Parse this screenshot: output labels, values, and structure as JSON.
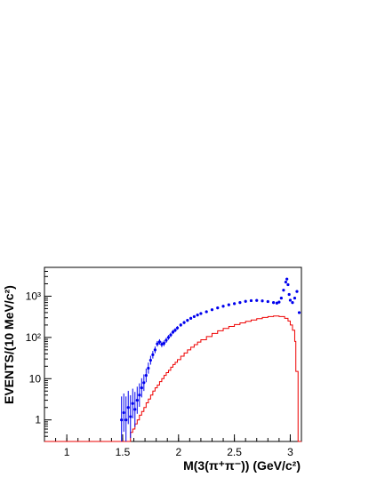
{
  "chart_data": {
    "type": "scatter",
    "title": "",
    "xlabel": "M(3(π⁺π⁻))   (GeV/c²)",
    "ylabel": "EVENTS/(10 MeV/c²)",
    "xlim": [
      0.8,
      3.1
    ],
    "ylim": [
      0.3,
      5000
    ],
    "y_scale": "log",
    "grid": false,
    "x_ticks": [
      {
        "value": 1,
        "label": "1"
      },
      {
        "value": 1.5,
        "label": "1.5"
      },
      {
        "value": 2,
        "label": "2"
      },
      {
        "value": 2.5,
        "label": "2.5"
      },
      {
        "value": 3,
        "label": "3"
      }
    ],
    "y_ticks": [
      {
        "value": 1,
        "label": "1"
      },
      {
        "value": 10,
        "label": "10"
      },
      {
        "value": 100,
        "label": "10²"
      },
      {
        "value": 1000,
        "label": "10³"
      }
    ],
    "series": [
      {
        "style": "points-with-error-bars",
        "color": "#0000ee",
        "points": [
          [
            1.49,
            1.0
          ],
          [
            1.51,
            1.5
          ],
          [
            1.53,
            1.0
          ],
          [
            1.55,
            2.0
          ],
          [
            1.57,
            1.2
          ],
          [
            1.59,
            2.5
          ],
          [
            1.61,
            1.8
          ],
          [
            1.63,
            3.0
          ],
          [
            1.65,
            4.0
          ],
          [
            1.67,
            6.0
          ],
          [
            1.69,
            8.0
          ],
          [
            1.71,
            12
          ],
          [
            1.73,
            18
          ],
          [
            1.75,
            28
          ],
          [
            1.77,
            38
          ],
          [
            1.79,
            50
          ],
          [
            1.81,
            70
          ],
          [
            1.83,
            78
          ],
          [
            1.85,
            68
          ],
          [
            1.87,
            72
          ],
          [
            1.89,
            85
          ],
          [
            1.91,
            100
          ],
          [
            1.93,
            115
          ],
          [
            1.95,
            135
          ],
          [
            1.97,
            150
          ],
          [
            1.99,
            170
          ],
          [
            2.02,
            200
          ],
          [
            2.05,
            230
          ],
          [
            2.08,
            260
          ],
          [
            2.11,
            290
          ],
          [
            2.14,
            320
          ],
          [
            2.17,
            350
          ],
          [
            2.2,
            380
          ],
          [
            2.25,
            420
          ],
          [
            2.3,
            470
          ],
          [
            2.35,
            520
          ],
          [
            2.4,
            570
          ],
          [
            2.45,
            620
          ],
          [
            2.5,
            660
          ],
          [
            2.55,
            700
          ],
          [
            2.6,
            750
          ],
          [
            2.65,
            780
          ],
          [
            2.7,
            790
          ],
          [
            2.75,
            770
          ],
          [
            2.8,
            740
          ],
          [
            2.85,
            700
          ],
          [
            2.88,
            680
          ],
          [
            2.9,
            720
          ],
          [
            2.92,
            900
          ],
          [
            2.94,
            1400
          ],
          [
            2.96,
            2200
          ],
          [
            2.97,
            2600
          ],
          [
            2.98,
            1900
          ],
          [
            2.99,
            1100
          ],
          [
            3.0,
            800
          ],
          [
            3.02,
            700
          ],
          [
            3.04,
            900
          ],
          [
            3.06,
            1300
          ],
          [
            3.08,
            400
          ]
        ]
      },
      {
        "style": "step-histogram",
        "color": "#ee0000",
        "points": [
          [
            0.8,
            0.3
          ],
          [
            1.55,
            0.3
          ],
          [
            1.57,
            0.5
          ],
          [
            1.59,
            0.6
          ],
          [
            1.61,
            0.8
          ],
          [
            1.63,
            1.0
          ],
          [
            1.65,
            1.3
          ],
          [
            1.67,
            1.6
          ],
          [
            1.69,
            2.0
          ],
          [
            1.71,
            2.6
          ],
          [
            1.73,
            3.2
          ],
          [
            1.75,
            4.0
          ],
          [
            1.77,
            5.0
          ],
          [
            1.79,
            6.0
          ],
          [
            1.81,
            7.0
          ],
          [
            1.83,
            8.5
          ],
          [
            1.85,
            10
          ],
          [
            1.87,
            12
          ],
          [
            1.89,
            14
          ],
          [
            1.91,
            16
          ],
          [
            1.93,
            19
          ],
          [
            1.95,
            22
          ],
          [
            1.97,
            25
          ],
          [
            1.99,
            29
          ],
          [
            2.02,
            35
          ],
          [
            2.05,
            42
          ],
          [
            2.08,
            50
          ],
          [
            2.11,
            58
          ],
          [
            2.14,
            67
          ],
          [
            2.17,
            77
          ],
          [
            2.2,
            88
          ],
          [
            2.25,
            105
          ],
          [
            2.3,
            125
          ],
          [
            2.35,
            145
          ],
          [
            2.4,
            165
          ],
          [
            2.45,
            185
          ],
          [
            2.5,
            205
          ],
          [
            2.55,
            225
          ],
          [
            2.6,
            245
          ],
          [
            2.65,
            265
          ],
          [
            2.7,
            285
          ],
          [
            2.75,
            305
          ],
          [
            2.8,
            320
          ],
          [
            2.85,
            330
          ],
          [
            2.9,
            320
          ],
          [
            2.95,
            290
          ],
          [
            2.98,
            250
          ],
          [
            3.0,
            200
          ],
          [
            3.02,
            150
          ],
          [
            3.04,
            80
          ],
          [
            3.05,
            15
          ],
          [
            3.07,
            0.3
          ],
          [
            3.1,
            0.3
          ]
        ]
      }
    ]
  }
}
